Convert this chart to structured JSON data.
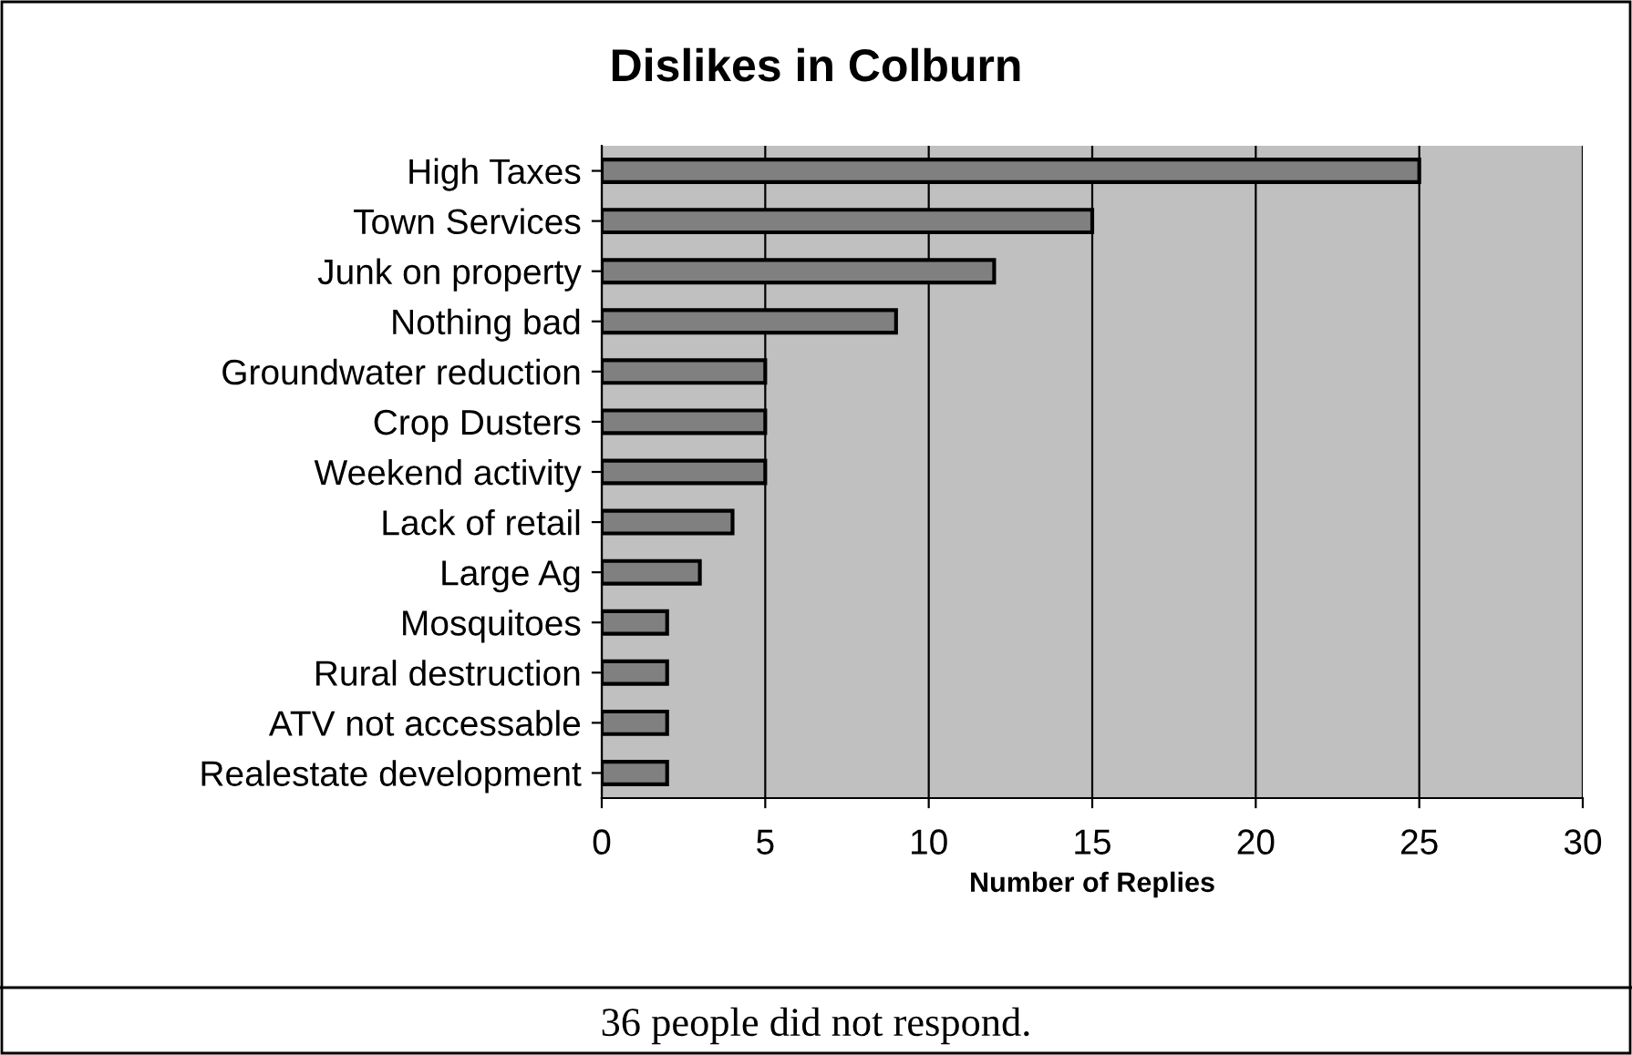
{
  "chart_data": {
    "type": "bar",
    "orientation": "horizontal",
    "title": "Dislikes in Colburn",
    "xlabel": "Number of Replies",
    "categories": [
      "High Taxes",
      "Town Services",
      "Junk on property",
      "Nothing bad",
      "Groundwater reduction",
      "Crop Dusters",
      "Weekend activity",
      "Lack of retail",
      "Large Ag",
      "Mosquitoes",
      "Rural destruction",
      "ATV not accessable",
      "Realestate development"
    ],
    "values": [
      25,
      15,
      12,
      9,
      5,
      5,
      5,
      4,
      3,
      2,
      2,
      2,
      2
    ],
    "color": "#808080",
    "xlim": [
      0,
      30
    ],
    "xticks": [
      0,
      5,
      10,
      15,
      20,
      25,
      30
    ],
    "grid": "x",
    "annotations": [
      "36 people did not respond."
    ]
  }
}
